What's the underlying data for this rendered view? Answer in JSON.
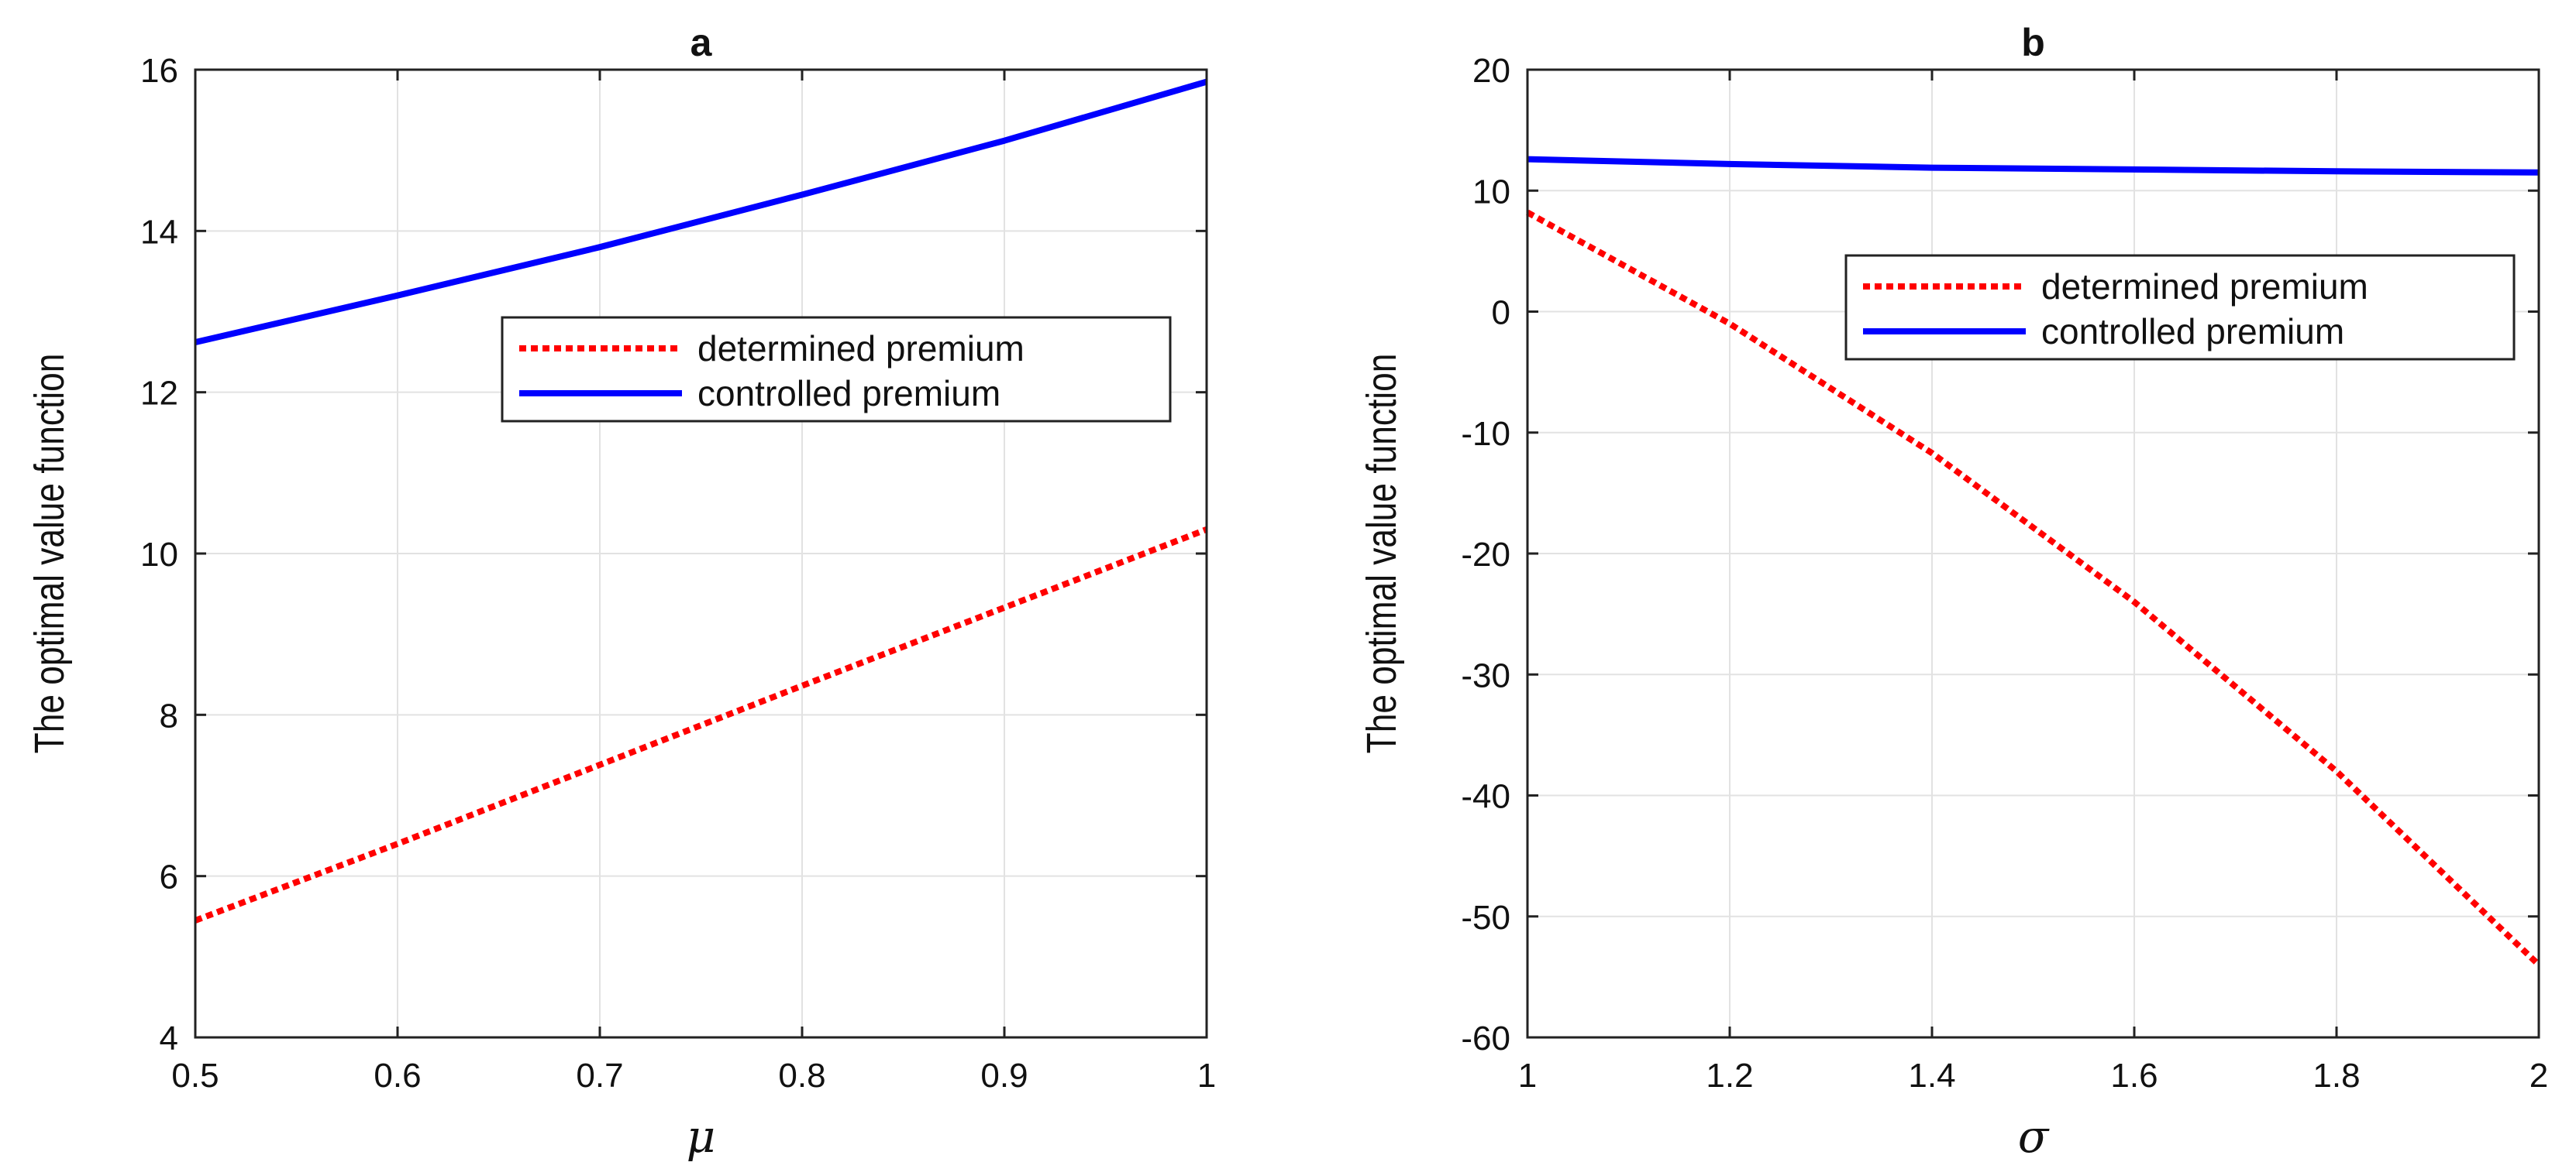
{
  "chart_data": [
    {
      "type": "line",
      "title": "a",
      "xlabel": "μ",
      "ylabel": "The optimal value function",
      "xlim": [
        0.5,
        1
      ],
      "ylim": [
        4,
        16
      ],
      "xticks": [
        0.5,
        0.6,
        0.7,
        0.8,
        0.9,
        1
      ],
      "xtick_labels": [
        "0.5",
        "0.6",
        "0.7",
        "0.8",
        "0.9",
        "1"
      ],
      "yticks": [
        4,
        6,
        8,
        10,
        12,
        14,
        16
      ],
      "ytick_labels": [
        "4",
        "6",
        "8",
        "10",
        "12",
        "14",
        "16"
      ],
      "grid": true,
      "legend_position": "upper-right-center",
      "series": [
        {
          "name": "determined premium",
          "color": "#ff0000",
          "style": "dotted",
          "x": [
            0.5,
            0.6,
            0.7,
            0.8,
            0.9,
            1.0
          ],
          "y": [
            5.45,
            6.4,
            7.38,
            8.36,
            9.33,
            10.3
          ]
        },
        {
          "name": "controlled premium",
          "color": "#0000ff",
          "style": "solid",
          "x": [
            0.5,
            0.6,
            0.7,
            0.8,
            0.9,
            1.0
          ],
          "y": [
            12.62,
            13.2,
            13.8,
            14.45,
            15.12,
            15.85
          ]
        }
      ]
    },
    {
      "type": "line",
      "title": "b",
      "xlabel": "σ",
      "ylabel": "The optimal value function",
      "xlim": [
        1,
        2
      ],
      "ylim": [
        -60,
        20
      ],
      "xticks": [
        1,
        1.2,
        1.4,
        1.6,
        1.8,
        2
      ],
      "xtick_labels": [
        "1",
        "1.2",
        "1.4",
        "1.6",
        "1.8",
        "2"
      ],
      "yticks": [
        -60,
        -50,
        -40,
        -30,
        -20,
        -10,
        0,
        10,
        20
      ],
      "ytick_labels": [
        "-60",
        "-50",
        "-40",
        "-30",
        "-20",
        "-10",
        "0",
        "10",
        "20"
      ],
      "grid": true,
      "legend_position": "upper-right",
      "series": [
        {
          "name": "determined premium",
          "color": "#ff0000",
          "style": "dotted",
          "x": [
            1.0,
            1.2,
            1.4,
            1.6,
            1.8,
            2.0
          ],
          "y": [
            8.2,
            -1.0,
            -11.7,
            -24.0,
            -38.0,
            -54.0
          ]
        },
        {
          "name": "controlled premium",
          "color": "#0000ff",
          "style": "solid",
          "x": [
            1.0,
            1.2,
            1.4,
            1.6,
            1.8,
            2.0
          ],
          "y": [
            12.6,
            12.2,
            11.9,
            11.75,
            11.6,
            11.5
          ]
        }
      ]
    }
  ]
}
